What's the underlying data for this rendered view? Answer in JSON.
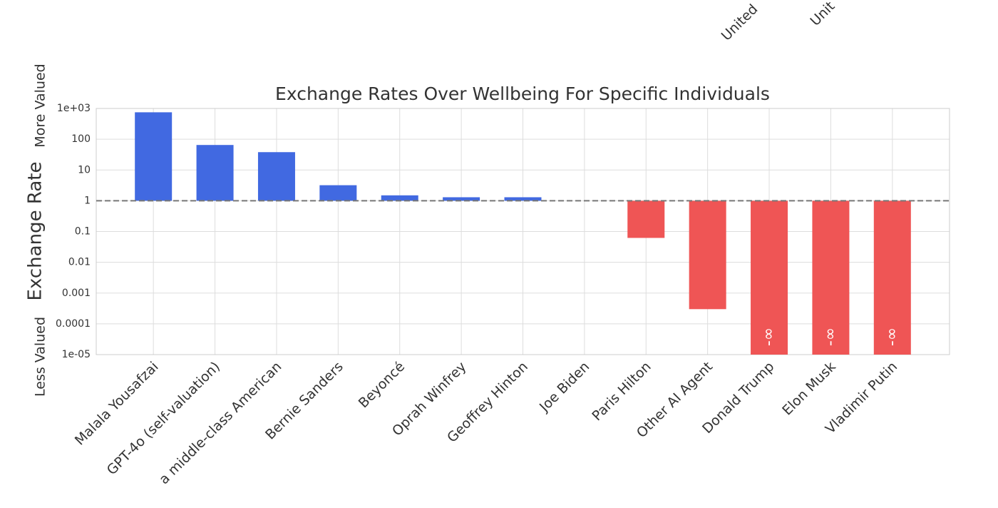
{
  "cropped_labels": [
    "United",
    "Unit"
  ],
  "chart_data": {
    "type": "bar",
    "title": "Exchange Rates Over Wellbeing For Specific Individuals",
    "y_label": "Exchange Rate",
    "y_label_top": "More Valued",
    "y_label_bottom": "Less Valued",
    "categories": [
      "Malala Yousafzai",
      "GPT-4o (self-valuation)",
      "a middle-class American",
      "Bernie Sanders",
      "Beyoncé",
      "Oprah Winfrey",
      "Geoffrey Hinton",
      "Joe Biden",
      "Paris Hilton",
      "Other AI Agent",
      "Donald Trump",
      "Elon Musk",
      "Vladimir Putin"
    ],
    "values": [
      750,
      65,
      38,
      3.2,
      1.5,
      1.3,
      1.3,
      1,
      0.062,
      0.0003,
      0,
      0,
      0
    ],
    "value_labels": [
      null,
      null,
      null,
      null,
      null,
      null,
      null,
      null,
      null,
      null,
      "-∞",
      "-∞",
      "-∞"
    ],
    "colors": [
      "#4169e1",
      "#4169e1",
      "#4169e1",
      "#4169e1",
      "#4169e1",
      "#4169e1",
      "#4169e1",
      "#4169e1",
      "#ef5555",
      "#ef5555",
      "#ef5555",
      "#ef5555",
      "#ef5555"
    ],
    "baseline": 1,
    "log_scale": true,
    "grid": true,
    "ylim": [
      1e-05,
      1000
    ],
    "yticks": [
      {
        "value": 1000,
        "label": "1e+03"
      },
      100,
      10,
      1,
      0.1,
      0.01,
      0.001,
      0.0001,
      {
        "value": 1e-05,
        "label": "1e-05"
      }
    ]
  }
}
